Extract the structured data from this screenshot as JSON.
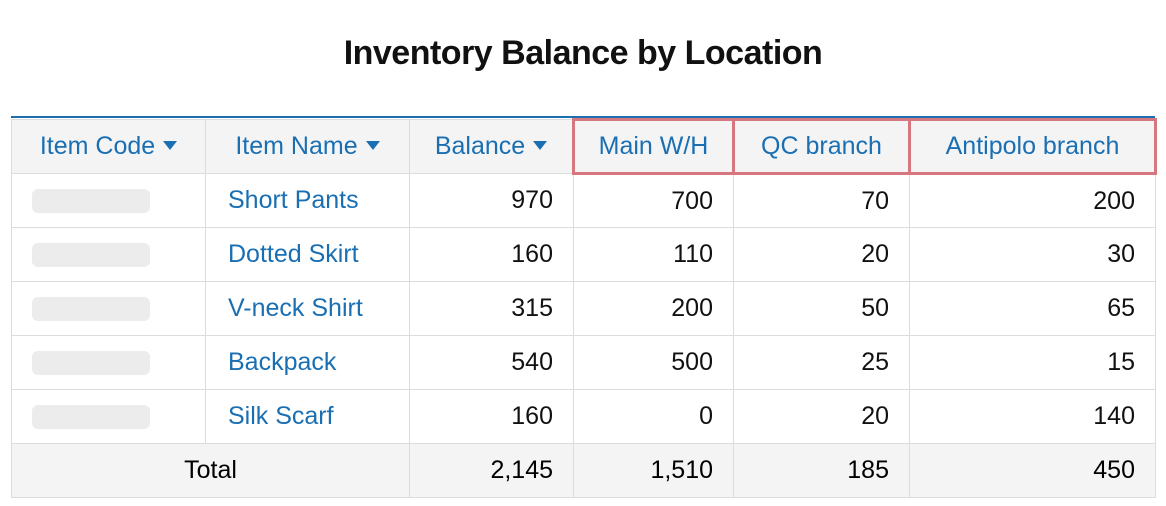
{
  "title": "Inventory Balance by Location",
  "columns": {
    "item_code": "Item Code",
    "item_name": "Item Name",
    "balance": "Balance",
    "main_wh": "Main W/H",
    "qc_branch": "QC branch",
    "antipolo_branch": "Antipolo branch"
  },
  "rows": [
    {
      "name": "Short Pants",
      "balance": "970",
      "main_wh": "700",
      "qc": "70",
      "antipolo": "200"
    },
    {
      "name": "Dotted Skirt",
      "balance": "160",
      "main_wh": "110",
      "qc": "20",
      "antipolo": "30"
    },
    {
      "name": "V-neck Shirt",
      "balance": "315",
      "main_wh": "200",
      "qc": "50",
      "antipolo": "65"
    },
    {
      "name": "Backpack",
      "balance": "540",
      "main_wh": "500",
      "qc": "25",
      "antipolo": "15"
    },
    {
      "name": "Silk Scarf",
      "balance": "160",
      "main_wh": "0",
      "qc": "20",
      "antipolo": "140"
    }
  ],
  "totals": {
    "label": "Total",
    "balance": "2,145",
    "main_wh": "1,510",
    "qc": "185",
    "antipolo": "450"
  },
  "colors": {
    "accent": "#1a6fb3",
    "highlight_border": "#d6777f",
    "header_bg": "#f4f4f4"
  }
}
